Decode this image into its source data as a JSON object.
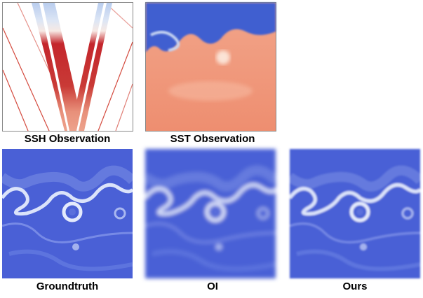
{
  "panels": [
    {
      "label": "SSH Observation"
    },
    {
      "label": "SST Observation"
    },
    {
      "label": "Groundtruth"
    },
    {
      "label": "OI"
    },
    {
      "label": "Ours"
    }
  ]
}
